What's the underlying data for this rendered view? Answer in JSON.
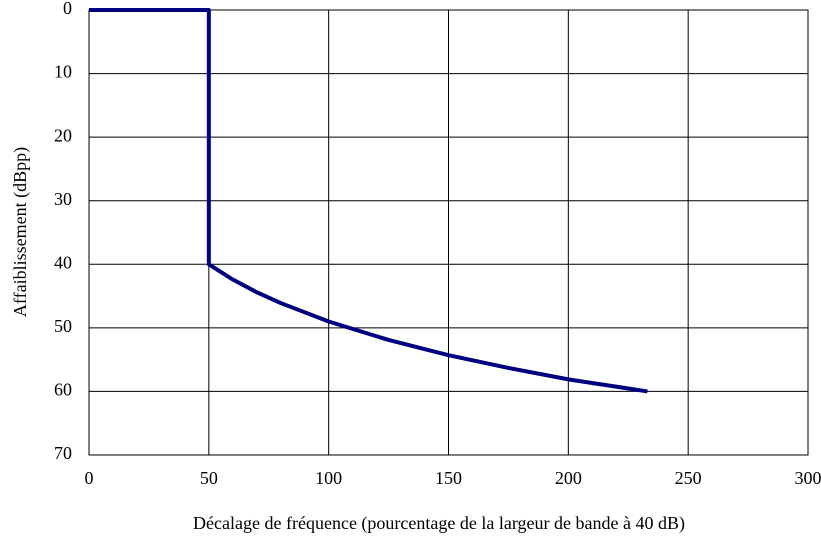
{
  "chart_data": {
    "type": "line",
    "x_label": "Décalage de fréquence (pourcentage de la largeur de bande à 40 dB)",
    "y_label": "Affaiblissement (dBpp)",
    "x": [
      0,
      50,
      50,
      60,
      70,
      80,
      100,
      125,
      150,
      175,
      200,
      233
    ],
    "series": [
      {
        "name": "Affaiblissement",
        "color": "#000080",
        "values": [
          0,
          0,
          40,
          42.4,
          44.4,
          46.1,
          49.0,
          51.9,
          54.3,
          56.3,
          58.1,
          60
        ]
      }
    ],
    "xlim": [
      0,
      300
    ],
    "xticks": [
      0,
      50,
      100,
      150,
      200,
      250,
      300
    ],
    "ylim": [
      70,
      0
    ],
    "yticks": [
      0,
      10,
      20,
      30,
      40,
      50,
      60,
      70
    ],
    "grid": true
  }
}
